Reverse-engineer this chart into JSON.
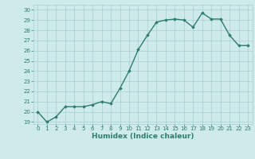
{
  "x": [
    0,
    1,
    2,
    3,
    4,
    5,
    6,
    7,
    8,
    9,
    10,
    11,
    12,
    13,
    14,
    15,
    16,
    17,
    18,
    19,
    20,
    21,
    22,
    23
  ],
  "y": [
    20,
    19,
    19.5,
    20.5,
    20.5,
    20.5,
    20.7,
    21.0,
    20.8,
    22.3,
    24.0,
    26.1,
    27.5,
    28.8,
    29.0,
    29.1,
    29.0,
    28.3,
    29.7,
    29.1,
    29.1,
    27.5,
    26.5,
    26.5
  ],
  "xlabel": "Humidex (Indice chaleur)",
  "ylabel": "",
  "ylim": [
    18.8,
    30.5
  ],
  "xlim": [
    -0.5,
    23.5
  ],
  "yticks": [
    19,
    20,
    21,
    22,
    23,
    24,
    25,
    26,
    27,
    28,
    29,
    30
  ],
  "xticks": [
    0,
    1,
    2,
    3,
    4,
    5,
    6,
    7,
    8,
    9,
    10,
    11,
    12,
    13,
    14,
    15,
    16,
    17,
    18,
    19,
    20,
    21,
    22,
    23
  ],
  "line_color": "#2e7d6e",
  "marker": "D",
  "marker_size": 1.8,
  "bg_color": "#ceeaea",
  "grid_color": "#a8d0d0",
  "tick_label_color": "#2e7d6e",
  "axis_label_color": "#2e7d6e",
  "line_width": 1.0,
  "label_fontsize": 6.5,
  "tick_fontsize": 5.0
}
